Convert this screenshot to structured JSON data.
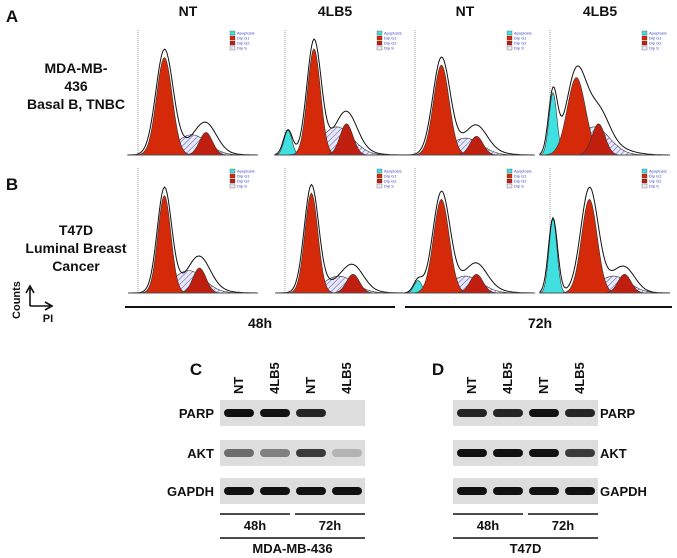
{
  "panel_labels": [
    "A",
    "B",
    "C",
    "D"
  ],
  "flow": {
    "column_headers": [
      "NT",
      "4LB5",
      "NT",
      "4LB5"
    ],
    "legend": [
      "Apoptosis",
      "Dip G1",
      "Dip G2",
      "Dip S"
    ],
    "rows": [
      {
        "label_lines": [
          "MDA-MB-",
          "436",
          "Basal B, TNBC"
        ]
      },
      {
        "label_lines": [
          "T47D",
          "Luminal Breast",
          "Cancer"
        ]
      }
    ],
    "axes": {
      "y": "Counts",
      "x": "PI"
    },
    "timepoints": [
      "48h",
      "72h"
    ]
  },
  "westerns": [
    {
      "lanes": [
        "NT",
        "4LB5",
        "NT",
        "4LB5"
      ],
      "proteins": [
        "PARP",
        "AKT",
        "GAPDH"
      ],
      "timepoints": [
        "48h",
        "72h"
      ],
      "cell_line": "MDA-MB-436"
    },
    {
      "lanes": [
        "NT",
        "4LB5",
        "NT",
        "4LB5"
      ],
      "proteins": [
        "PARP",
        "AKT",
        "GAPDH"
      ],
      "timepoints": [
        "48h",
        "72h"
      ],
      "cell_line": "T47D"
    }
  ]
}
